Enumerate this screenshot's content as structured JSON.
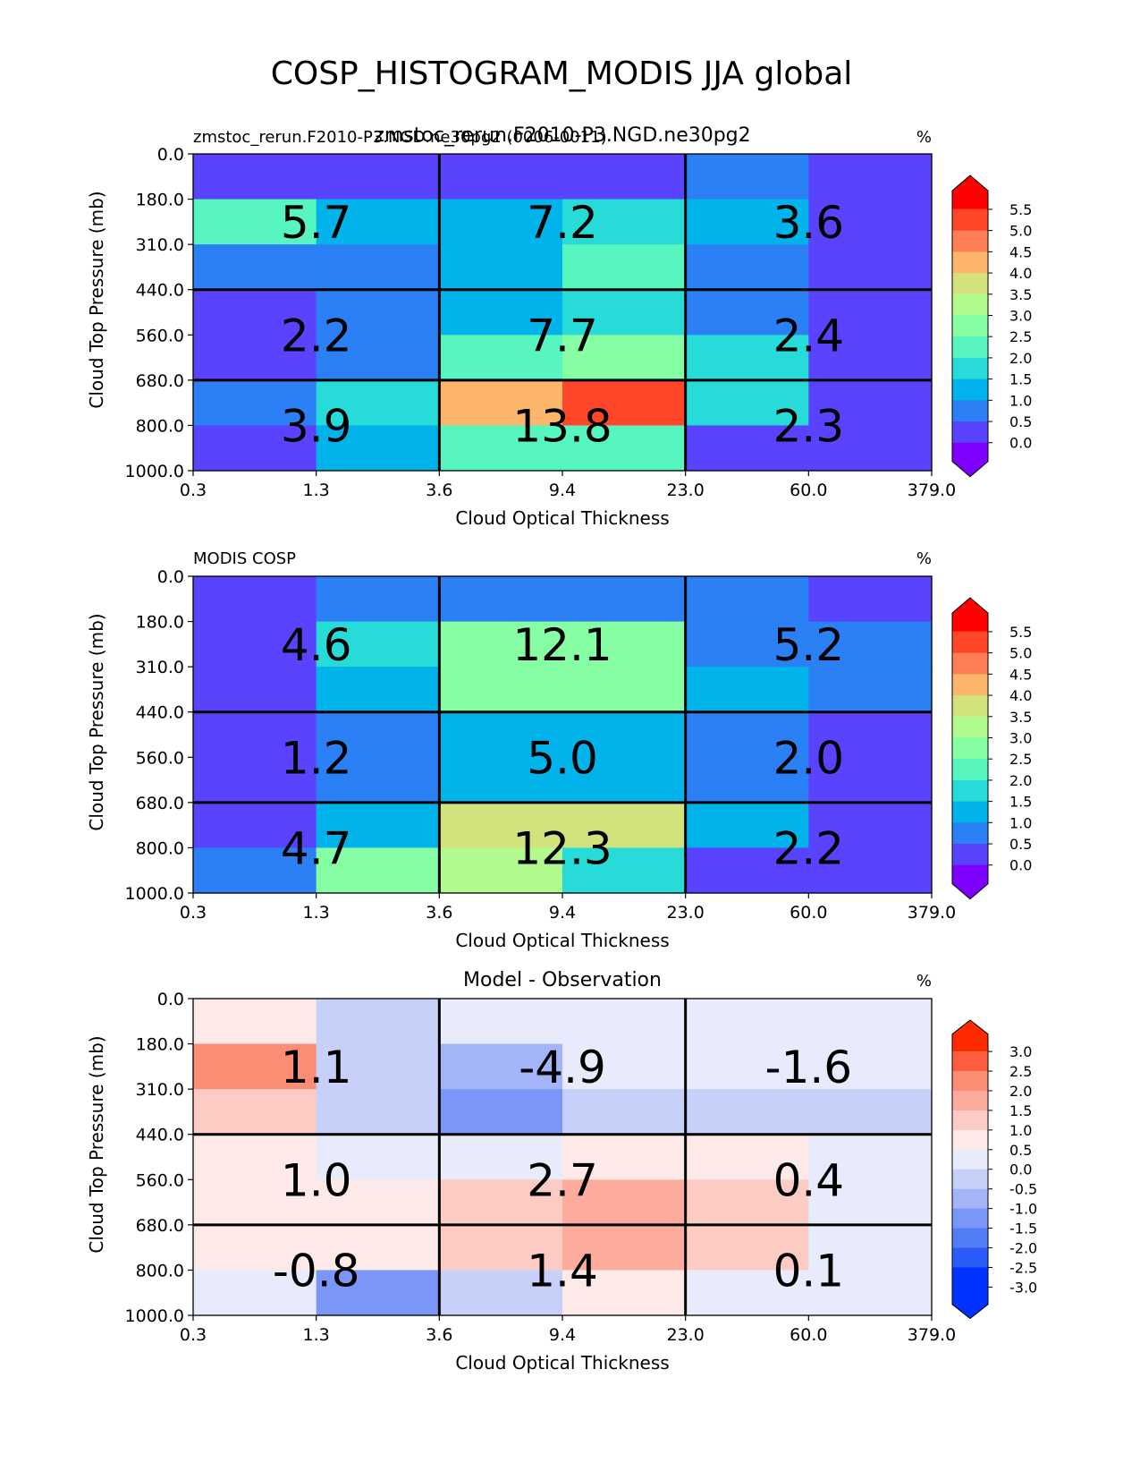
{
  "title": "COSP_HISTOGRAM_MODIS JJA global",
  "x_ticks": [
    "0.3",
    "1.3",
    "3.6",
    "9.4",
    "23.0",
    "60.0",
    "379.0"
  ],
  "y_ticks": [
    "0.0",
    "180.0",
    "310.0",
    "440.0",
    "560.0",
    "680.0",
    "800.0",
    "1000.0"
  ],
  "colors": {
    "abs": [
      "#7f00ff",
      "#5a43ff",
      "#2b80f6",
      "#00b4eb",
      "#27dcd8",
      "#56f6be",
      "#86fea4",
      "#b1fa8e",
      "#d4e27e",
      "#fdb56c",
      "#ff7e55",
      "#ff4628",
      "#ff0000"
    ],
    "diff": [
      "#0033ff",
      "#2b5bf8",
      "#527cf8",
      "#7a96f8",
      "#a3b4f8",
      "#c6d0f8",
      "#e8ebfb",
      "#fde9e7",
      "#fccbc4",
      "#fcab9c",
      "#fc8c74",
      "#fc5e3d",
      "#ff2a00"
    ]
  },
  "panels": [
    {
      "title_left": "zmstoc_rerun.F2010-P3.NGD.ne30pg2 (0006-0011)",
      "title_center": "zmstoc_rerun.F2010-P3.NGD.ne30pg2",
      "units": "%",
      "xlabel": "Cloud Optical Thickness",
      "ylabel": "Cloud Top Pressure (mb)",
      "colorbar_ticks": [
        "5.5",
        "5.0",
        "4.5",
        "4.0",
        "3.5",
        "3.0",
        "2.5",
        "2.0",
        "1.5",
        "1.0",
        "0.5",
        "0.0"
      ],
      "grid_labels": [
        [
          "5.7",
          "7.2",
          "3.6"
        ],
        [
          "2.2",
          "7.7",
          "2.4"
        ],
        [
          "3.9",
          "13.8",
          "2.3"
        ]
      ]
    },
    {
      "title_left": "MODIS COSP",
      "title_center": "",
      "units": "%",
      "xlabel": "Cloud Optical Thickness",
      "ylabel": "Cloud Top Pressure (mb)",
      "colorbar_ticks": [
        "5.5",
        "5.0",
        "4.5",
        "4.0",
        "3.5",
        "3.0",
        "2.5",
        "2.0",
        "1.5",
        "1.0",
        "0.5",
        "0.0"
      ],
      "grid_labels": [
        [
          "4.6",
          "12.1",
          "5.2"
        ],
        [
          "1.2",
          "5.0",
          "2.0"
        ],
        [
          "4.7",
          "12.3",
          "2.2"
        ]
      ]
    },
    {
      "title_left": "",
      "title_center": "Model - Observation",
      "units": "%",
      "xlabel": "Cloud Optical Thickness",
      "ylabel": "Cloud Top Pressure (mb)",
      "colorbar_ticks": [
        "3.0",
        "2.5",
        "2.0",
        "1.5",
        "1.0",
        "0.5",
        "0.0",
        "-0.5",
        "-1.0",
        "-1.5",
        "-2.0",
        "-2.5",
        "-3.0"
      ],
      "grid_labels": [
        [
          "1.1",
          "-4.9",
          "-1.6"
        ],
        [
          "1.0",
          "2.7",
          "0.4"
        ],
        [
          "-0.8",
          "1.4",
          "0.1"
        ]
      ]
    }
  ],
  "chart_data": [
    {
      "type": "heatmap",
      "title": "zmstoc_rerun.F2010-P3.NGD.ne30pg2",
      "subtitle": "zmstoc_rerun.F2010-P3.NGD.ne30pg2 (0006-0011)",
      "xlabel": "Cloud Optical Thickness",
      "ylabel": "Cloud Top Pressure (mb)",
      "units": "%",
      "x_edges": [
        0.3,
        1.3,
        3.6,
        9.4,
        23.0,
        60.0,
        379.0
      ],
      "y_edges": [
        0.0,
        180.0,
        310.0,
        440.0,
        560.0,
        680.0,
        800.0,
        1000.0
      ],
      "levels": [
        0.0,
        0.5,
        1.0,
        1.5,
        2.0,
        2.5,
        3.0,
        3.5,
        4.0,
        4.5,
        5.0,
        5.5
      ],
      "values": [
        [
          0.2,
          0.2,
          0.2,
          0.2,
          0.7,
          0.2
        ],
        [
          2.2,
          1.4,
          1.4,
          1.8,
          1.4,
          0.2
        ],
        [
          0.7,
          0.7,
          1.4,
          2.2,
          0.7,
          0.2
        ],
        [
          0.2,
          0.7,
          1.4,
          1.8,
          0.7,
          0.2
        ],
        [
          0.2,
          0.7,
          2.2,
          2.7,
          1.8,
          0.2
        ],
        [
          0.7,
          1.8,
          4.2,
          5.3,
          1.8,
          0.2
        ],
        [
          0.2,
          1.4,
          2.2,
          2.2,
          0.2,
          0.2
        ]
      ],
      "group_totals": [
        [
          5.7,
          7.2,
          3.6
        ],
        [
          2.2,
          7.7,
          2.4
        ],
        [
          3.9,
          13.8,
          2.3
        ]
      ]
    },
    {
      "type": "heatmap",
      "title": "MODIS COSP",
      "xlabel": "Cloud Optical Thickness",
      "ylabel": "Cloud Top Pressure (mb)",
      "units": "%",
      "x_edges": [
        0.3,
        1.3,
        3.6,
        9.4,
        23.0,
        60.0,
        379.0
      ],
      "y_edges": [
        0.0,
        180.0,
        310.0,
        440.0,
        560.0,
        680.0,
        800.0,
        1000.0
      ],
      "levels": [
        0.0,
        0.5,
        1.0,
        1.5,
        2.0,
        2.5,
        3.0,
        3.5,
        4.0,
        4.5,
        5.0,
        5.5
      ],
      "values": [
        [
          0.2,
          0.7,
          0.7,
          0.7,
          0.7,
          0.2
        ],
        [
          0.2,
          1.8,
          2.7,
          2.7,
          0.7,
          0.7
        ],
        [
          0.2,
          1.4,
          2.7,
          2.7,
          1.4,
          0.7
        ],
        [
          0.2,
          0.7,
          1.4,
          1.4,
          0.7,
          0.2
        ],
        [
          0.2,
          0.7,
          1.4,
          1.4,
          0.7,
          0.2
        ],
        [
          0.2,
          1.4,
          3.7,
          3.7,
          1.4,
          0.2
        ],
        [
          0.7,
          2.7,
          3.2,
          1.8,
          0.2,
          0.2
        ]
      ],
      "group_totals": [
        [
          4.6,
          12.1,
          5.2
        ],
        [
          1.2,
          5.0,
          2.0
        ],
        [
          4.7,
          12.3,
          2.2
        ]
      ]
    },
    {
      "type": "heatmap",
      "title": "Model - Observation",
      "xlabel": "Cloud Optical Thickness",
      "ylabel": "Cloud Top Pressure (mb)",
      "units": "%",
      "x_edges": [
        0.3,
        1.3,
        3.6,
        9.4,
        23.0,
        60.0,
        379.0
      ],
      "y_edges": [
        0.0,
        180.0,
        310.0,
        440.0,
        560.0,
        680.0,
        800.0,
        1000.0
      ],
      "levels": [
        -3.0,
        -2.5,
        -2.0,
        -1.5,
        -1.0,
        -0.5,
        0.0,
        0.5,
        1.0,
        1.5,
        2.0,
        2.5,
        3.0
      ],
      "values": [
        [
          0.2,
          -0.7,
          -0.2,
          -0.2,
          -0.2,
          -0.2
        ],
        [
          1.7,
          -0.7,
          -1.2,
          -0.2,
          -0.2,
          -0.2
        ],
        [
          0.7,
          -0.7,
          -1.7,
          -0.7,
          -0.7,
          -0.7
        ],
        [
          0.2,
          -0.2,
          -0.2,
          0.2,
          0.2,
          -0.2
        ],
        [
          0.2,
          0.2,
          0.7,
          1.2,
          0.7,
          -0.2
        ],
        [
          0.2,
          0.2,
          0.7,
          1.2,
          0.7,
          -0.2
        ],
        [
          -0.2,
          -1.7,
          -0.7,
          0.2,
          -0.2,
          -0.2
        ]
      ],
      "group_totals": [
        [
          1.1,
          -4.9,
          -1.6
        ],
        [
          1.0,
          2.7,
          0.4
        ],
        [
          -0.8,
          1.4,
          0.1
        ]
      ]
    }
  ]
}
